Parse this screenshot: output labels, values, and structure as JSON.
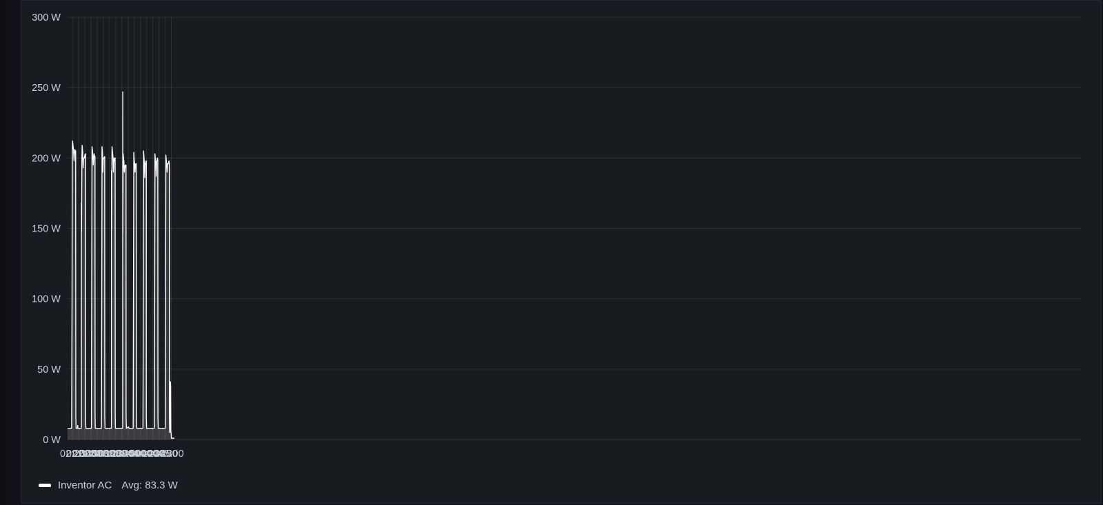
{
  "chart_data": {
    "type": "area",
    "y_unit": "W",
    "ylim": [
      0,
      300
    ],
    "y_ticks": [
      "0 W",
      "50 W",
      "100 W",
      "150 W",
      "200 W",
      "250 W",
      "300 W"
    ],
    "y_tick_values": [
      0,
      50,
      100,
      150,
      200,
      250,
      300
    ],
    "x_range_minutes": [
      132,
      1758
    ],
    "x_ticks": [
      "02:20",
      "02:30",
      "02:40",
      "02:50",
      "03:00",
      "03:10",
      "03:20",
      "03:30",
      "03:40",
      "03:50",
      "04:00",
      "04:10",
      "04:20",
      "04:30",
      "04:40",
      "04:50",
      "05:00"
    ],
    "x_tick_minutes": [
      140,
      150,
      160,
      170,
      180,
      190,
      200,
      210,
      220,
      230,
      240,
      250,
      260,
      270,
      280,
      290,
      300
    ],
    "grid": true,
    "series": [
      {
        "name": "Inventor AC",
        "color": "#ffffff",
        "points": [
          [
            132.0,
            8
          ],
          [
            138.6,
            8
          ],
          [
            139.2,
            100
          ],
          [
            139.6,
            205
          ],
          [
            140.2,
            212
          ],
          [
            141.0,
            208
          ],
          [
            141.8,
            205
          ],
          [
            142.5,
            198
          ],
          [
            143.2,
            202
          ],
          [
            143.8,
            206
          ],
          [
            144.6,
            205
          ],
          [
            145.2,
            205
          ],
          [
            145.4,
            17
          ],
          [
            145.8,
            8
          ],
          [
            148.0,
            8
          ],
          [
            148.4,
            10
          ],
          [
            148.8,
            8
          ],
          [
            154.3,
            8
          ],
          [
            154.4,
            168
          ],
          [
            154.6,
            148
          ],
          [
            155.2,
            200
          ],
          [
            155.6,
            209
          ],
          [
            156.6,
            204
          ],
          [
            157.2,
            193
          ],
          [
            157.8,
            200
          ],
          [
            159.2,
            200
          ],
          [
            160.0,
            202
          ],
          [
            161.1,
            203
          ],
          [
            161.2,
            17
          ],
          [
            161.6,
            8
          ],
          [
            170.6,
            8
          ],
          [
            171.1,
            100
          ],
          [
            171.6,
            208
          ],
          [
            172.4,
            205
          ],
          [
            173.0,
            202
          ],
          [
            173.6,
            195
          ],
          [
            174.4,
            200
          ],
          [
            175.0,
            203
          ],
          [
            176.0,
            201
          ],
          [
            176.4,
            201
          ],
          [
            176.5,
            17
          ],
          [
            176.9,
            8
          ],
          [
            186.8,
            8
          ],
          [
            187.3,
            100
          ],
          [
            187.8,
            208
          ],
          [
            188.6,
            203
          ],
          [
            189.1,
            190
          ],
          [
            189.7,
            199
          ],
          [
            190.6,
            200
          ],
          [
            192.2,
            201
          ],
          [
            192.3,
            17
          ],
          [
            192.7,
            8
          ],
          [
            203.0,
            8
          ],
          [
            203.1,
            191
          ],
          [
            203.3,
            150
          ],
          [
            204.0,
            208
          ],
          [
            204.9,
            204
          ],
          [
            205.6,
            200
          ],
          [
            206.2,
            190
          ],
          [
            207.1,
            199
          ],
          [
            207.8,
            200
          ],
          [
            208.4,
            198
          ],
          [
            209.0,
            200
          ],
          [
            209.1,
            17
          ],
          [
            209.5,
            8
          ],
          [
            221.3,
            8
          ],
          [
            221.35,
            247
          ],
          [
            221.45,
            147
          ],
          [
            222.0,
            203
          ],
          [
            222.8,
            199
          ],
          [
            223.2,
            198
          ],
          [
            223.8,
            190
          ],
          [
            224.6,
            194
          ],
          [
            225.6,
            195
          ],
          [
            226.4,
            193
          ],
          [
            226.6,
            195
          ],
          [
            226.8,
            17
          ],
          [
            227.2,
            8
          ],
          [
            230.8,
            9
          ],
          [
            231.4,
            8
          ],
          [
            238.2,
            8
          ],
          [
            238.7,
            100
          ],
          [
            239.2,
            204
          ],
          [
            240.0,
            198
          ],
          [
            240.6,
            196
          ],
          [
            241.1,
            190
          ],
          [
            241.8,
            195
          ],
          [
            242.6,
            196
          ],
          [
            243.2,
            196
          ],
          [
            243.4,
            17
          ],
          [
            243.8,
            8
          ],
          [
            254.1,
            8
          ],
          [
            254.6,
            100
          ],
          [
            255.1,
            205
          ],
          [
            255.7,
            201
          ],
          [
            256.3,
            197
          ],
          [
            257.0,
            186
          ],
          [
            257.6,
            195
          ],
          [
            258.7,
            197
          ],
          [
            259.4,
            198
          ],
          [
            259.5,
            17
          ],
          [
            259.9,
            8
          ],
          [
            272.5,
            8
          ],
          [
            273.0,
            100
          ],
          [
            273.5,
            203
          ],
          [
            274.3,
            198
          ],
          [
            274.9,
            197
          ],
          [
            275.5,
            187
          ],
          [
            276.2,
            197
          ],
          [
            277.4,
            200
          ],
          [
            278.1,
            199
          ],
          [
            278.3,
            17
          ],
          [
            278.7,
            8
          ],
          [
            290.1,
            8
          ],
          [
            290.6,
            100
          ],
          [
            291.1,
            202
          ],
          [
            291.9,
            198
          ],
          [
            292.5,
            195
          ],
          [
            293.1,
            190
          ],
          [
            293.9,
            196
          ],
          [
            295.4,
            196
          ],
          [
            296.2,
            198
          ],
          [
            296.8,
            196
          ],
          [
            296.9,
            17
          ],
          [
            297.3,
            5
          ],
          [
            297.7,
            8
          ],
          [
            298.1,
            40
          ],
          [
            298.4,
            41
          ],
          [
            298.8,
            38
          ],
          [
            299.2,
            5
          ],
          [
            299.6,
            5
          ],
          [
            300.1,
            1
          ],
          [
            305.0,
            1
          ]
        ]
      }
    ],
    "legend": [
      {
        "name": "Inventor AC",
        "stat": "Avg: 83.3 W"
      }
    ]
  },
  "legend": {
    "series_name": "Inventor AC",
    "avg_text": "Avg: 83.3 W"
  }
}
